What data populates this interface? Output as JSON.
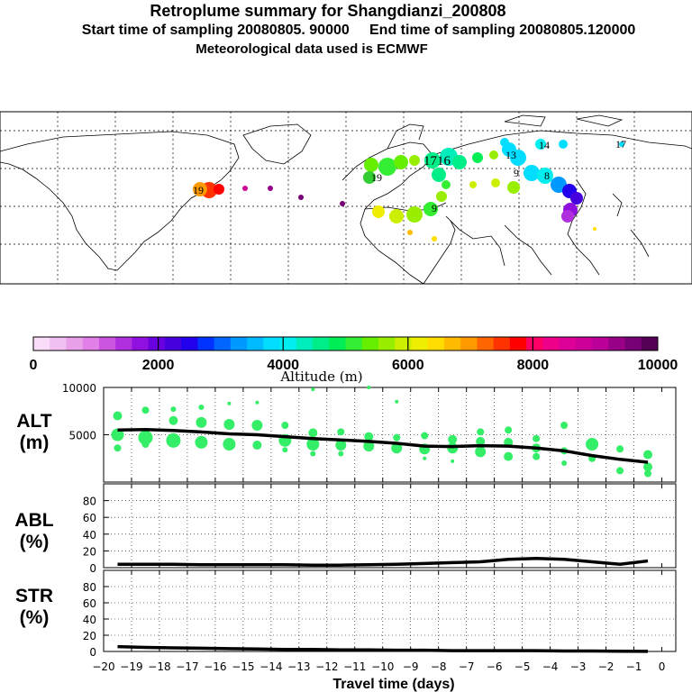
{
  "header": {
    "title": "Retroplume summary for Shangdianzi_200808",
    "sampling": "Start time of sampling 20080805. 90000     End time of sampling 20080805.120000",
    "met": "Meteorological data used is ECMWF"
  },
  "map": {
    "labels": [
      {
        "text": "19",
        "lon": -72,
        "lat": 41,
        "color": "#ff6600"
      },
      {
        "text": "1716",
        "lon": 36,
        "lat": 53,
        "color": "#33cc77"
      },
      {
        "text": "13",
        "lon": 80,
        "lat": 52,
        "color": "#00ccee"
      },
      {
        "text": "9",
        "lon": 92,
        "lat": 46,
        "color": "#00ccee"
      },
      {
        "text": "8",
        "lon": 117,
        "lat": 48,
        "color": "#00ddee"
      },
      {
        "text": "19",
        "lon": 8,
        "lat": 45,
        "color": "#33cc33"
      },
      {
        "text": "9",
        "lon": 30,
        "lat": 36,
        "color": "#99dd00"
      },
      {
        "text": "14",
        "lon": 104,
        "lat": 63,
        "color": "#00ddee"
      },
      {
        "text": "17",
        "lon": 152,
        "lat": 63,
        "color": "#00ddee"
      }
    ]
  },
  "colorbar": {
    "tick_labels": [
      "0",
      "2000",
      "4000",
      "6000",
      "8000",
      "10000"
    ],
    "title": "Altitude (m)",
    "colors": [
      "#f8dcf8",
      "#f0c0f0",
      "#e8a0e8",
      "#e080e8",
      "#cc55e0",
      "#b030e0",
      "#9010e0",
      "#6a00e0",
      "#4400dd",
      "#2200ee",
      "#0033ff",
      "#0066ff",
      "#0099ff",
      "#00bbff",
      "#00ddff",
      "#00eeee",
      "#00eebb",
      "#00ee88",
      "#00ee55",
      "#33ee33",
      "#66ee00",
      "#99ee00",
      "#ccee00",
      "#eeee00",
      "#ffdd00",
      "#ffbb00",
      "#ff9900",
      "#ff6600",
      "#ff3300",
      "#ff0000",
      "#ff0066",
      "#ee0088",
      "#dd0099",
      "#cc0099",
      "#bb0099",
      "#990088",
      "#770077",
      "#550055"
    ]
  },
  "chart_data": [
    {
      "type": "line",
      "name": "ALT",
      "ylabel": "ALT\n(m)",
      "ylim": [
        0,
        10000
      ],
      "y_ticks": [
        5000,
        10000
      ],
      "x": [
        -19.5,
        -18.5,
        -17.5,
        -16.5,
        -15.5,
        -14.5,
        -13.5,
        -12.5,
        -11.5,
        -10.5,
        -9.5,
        -8.5,
        -7.5,
        -6.5,
        -5.5,
        -4.5,
        -3.5,
        -2.5,
        -1.5,
        -0.5
      ],
      "mean": [
        5500,
        5550,
        5450,
        5300,
        5100,
        5000,
        4800,
        4600,
        4450,
        4300,
        4100,
        3800,
        3750,
        3850,
        3800,
        3600,
        3300,
        2800,
        2400,
        2100
      ],
      "points": [
        {
          "x": -19.5,
          "y": 7000,
          "s": 5
        },
        {
          "x": -19.5,
          "y": 5000,
          "s": 7
        },
        {
          "x": -19.5,
          "y": 3600,
          "s": 4
        },
        {
          "x": -18.5,
          "y": 7600,
          "s": 4
        },
        {
          "x": -18.5,
          "y": 4700,
          "s": 8
        },
        {
          "x": -18.5,
          "y": 4000,
          "s": 4
        },
        {
          "x": -17.5,
          "y": 7700,
          "s": 3
        },
        {
          "x": -17.5,
          "y": 6500,
          "s": 5
        },
        {
          "x": -17.5,
          "y": 4400,
          "s": 8
        },
        {
          "x": -16.5,
          "y": 7900,
          "s": 3
        },
        {
          "x": -16.5,
          "y": 6300,
          "s": 6
        },
        {
          "x": -16.5,
          "y": 4200,
          "s": 7
        },
        {
          "x": -15.5,
          "y": 8300,
          "s": 2
        },
        {
          "x": -15.5,
          "y": 6100,
          "s": 6
        },
        {
          "x": -15.5,
          "y": 4000,
          "s": 7
        },
        {
          "x": -14.5,
          "y": 8400,
          "s": 2
        },
        {
          "x": -14.5,
          "y": 6000,
          "s": 6
        },
        {
          "x": -14.5,
          "y": 3900,
          "s": 5
        },
        {
          "x": -13.5,
          "y": 6000,
          "s": 4
        },
        {
          "x": -13.5,
          "y": 4400,
          "s": 7
        },
        {
          "x": -13.5,
          "y": 3400,
          "s": 3
        },
        {
          "x": -12.5,
          "y": 9800,
          "s": 2
        },
        {
          "x": -12.5,
          "y": 5200,
          "s": 5
        },
        {
          "x": -12.5,
          "y": 4000,
          "s": 7
        },
        {
          "x": -12.5,
          "y": 3000,
          "s": 3
        },
        {
          "x": -11.5,
          "y": 5300,
          "s": 4
        },
        {
          "x": -11.5,
          "y": 3900,
          "s": 6
        },
        {
          "x": -11.5,
          "y": 3000,
          "s": 3
        },
        {
          "x": -10.5,
          "y": 10000,
          "s": 2
        },
        {
          "x": -10.5,
          "y": 4800,
          "s": 5
        },
        {
          "x": -10.5,
          "y": 3800,
          "s": 6
        },
        {
          "x": -9.5,
          "y": 8500,
          "s": 2
        },
        {
          "x": -9.5,
          "y": 4700,
          "s": 4
        },
        {
          "x": -9.5,
          "y": 3600,
          "s": 6
        },
        {
          "x": -8.5,
          "y": 4900,
          "s": 4
        },
        {
          "x": -8.5,
          "y": 3500,
          "s": 6
        },
        {
          "x": -8.5,
          "y": 2500,
          "s": 2
        },
        {
          "x": -7.5,
          "y": 4500,
          "s": 5
        },
        {
          "x": -7.5,
          "y": 3600,
          "s": 6
        },
        {
          "x": -7.5,
          "y": 2200,
          "s": 2
        },
        {
          "x": -6.5,
          "y": 5300,
          "s": 4
        },
        {
          "x": -6.5,
          "y": 4300,
          "s": 5
        },
        {
          "x": -6.5,
          "y": 3200,
          "s": 6
        },
        {
          "x": -5.5,
          "y": 5500,
          "s": 4
        },
        {
          "x": -5.5,
          "y": 4200,
          "s": 5
        },
        {
          "x": -5.5,
          "y": 2700,
          "s": 5
        },
        {
          "x": -4.5,
          "y": 4600,
          "s": 4
        },
        {
          "x": -4.5,
          "y": 3600,
          "s": 5
        },
        {
          "x": -4.5,
          "y": 2700,
          "s": 4
        },
        {
          "x": -3.5,
          "y": 6000,
          "s": 4
        },
        {
          "x": -3.5,
          "y": 3300,
          "s": 4
        },
        {
          "x": -3.5,
          "y": 2000,
          "s": 3
        },
        {
          "x": -2.5,
          "y": 4000,
          "s": 7
        },
        {
          "x": -2.5,
          "y": 2500,
          "s": 4
        },
        {
          "x": -1.5,
          "y": 3500,
          "s": 4
        },
        {
          "x": -1.5,
          "y": 1200,
          "s": 4
        },
        {
          "x": -0.5,
          "y": 2900,
          "s": 5
        },
        {
          "x": -0.5,
          "y": 1600,
          "s": 5
        },
        {
          "x": -0.5,
          "y": 900,
          "s": 4
        }
      ]
    },
    {
      "type": "line",
      "name": "ABL",
      "ylabel": "ABL\n(%)",
      "ylim": [
        0,
        100
      ],
      "y_ticks": [
        0,
        20,
        40,
        60,
        80
      ],
      "x": [
        -19.5,
        -18.5,
        -17.5,
        -16.5,
        -15.5,
        -14.5,
        -13.5,
        -12.5,
        -11.5,
        -10.5,
        -9.5,
        -8.5,
        -7.5,
        -6.5,
        -5.5,
        -4.5,
        -3.5,
        -2.5,
        -1.5,
        -0.5
      ],
      "values": [
        4,
        4,
        4,
        3.5,
        3.5,
        3.5,
        3.5,
        3,
        3,
        3.5,
        4,
        5,
        6,
        7,
        10,
        11,
        10,
        7,
        4,
        8
      ]
    },
    {
      "type": "line",
      "name": "STR",
      "ylabel": "STR\n(%)",
      "ylim": [
        0,
        100
      ],
      "y_ticks": [
        0,
        20,
        40,
        60,
        80
      ],
      "x": [
        -19.5,
        -18.5,
        -17.5,
        -16.5,
        -15.5,
        -14.5,
        -13.5,
        -12.5,
        -11.5,
        -10.5,
        -9.5,
        -8.5,
        -7.5,
        -6.5,
        -5.5,
        -4.5,
        -3.5,
        -2.5,
        -1.5,
        -0.5
      ],
      "values": [
        6,
        5,
        4.5,
        4,
        3.5,
        3,
        2.5,
        2.5,
        2,
        2,
        1.5,
        1.5,
        1,
        1,
        1,
        1,
        0.5,
        0.5,
        0.3,
        0.2
      ]
    }
  ],
  "x_axis": {
    "xlabel": "Travel time (days)",
    "tick_labels": [
      "−20",
      "−19",
      "−18",
      "−17",
      "−16",
      "−15",
      "−14",
      "−13",
      "−12",
      "−11",
      "−10",
      "−9",
      "−8",
      "−7",
      "−6",
      "−5",
      "−4",
      "−3",
      "−2",
      "−1",
      "0"
    ]
  }
}
